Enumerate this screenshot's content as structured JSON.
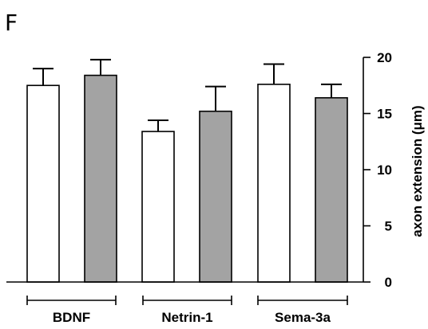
{
  "panel_label": "F",
  "chart_data": {
    "type": "bar",
    "title": "",
    "xlabel": "",
    "ylabel": "axon extension (μm)",
    "ylim": [
      0,
      20
    ],
    "yticks": [
      "0",
      "5",
      "10",
      "15",
      "20"
    ],
    "categories": [
      "BDNF",
      "Netrin-1",
      "Sema-3a"
    ],
    "series": [
      {
        "fill": "#ffffff",
        "values": [
          17.5,
          13.4,
          17.6
        ],
        "errors": [
          1.5,
          1.0,
          1.8
        ]
      },
      {
        "fill": "#a3a3a3",
        "values": [
          18.4,
          15.2,
          16.4
        ],
        "errors": [
          1.4,
          2.2,
          1.2
        ]
      }
    ],
    "grid": false,
    "legend": "none",
    "y_axis_side": "right"
  }
}
